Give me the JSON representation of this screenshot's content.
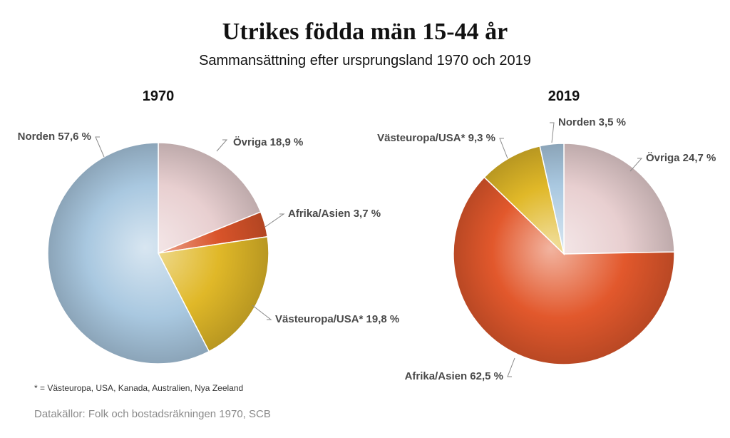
{
  "title": "Utrikes födda män 15-44 år",
  "subtitle": "Sammansättning efter ursprungsland 1970 och 2019",
  "footnote": "* = Västeuropa, USA, Kanada, Australien, Nya Zeeland",
  "source": "Datakällor: Folk och bostadsräkningen 1970, SCB",
  "chart_data": [
    {
      "type": "pie",
      "title": "1970",
      "slices": [
        {
          "label": "Övriga 18,9 %",
          "category": "Övriga",
          "value": 18.9,
          "color": "#e8cfd0"
        },
        {
          "label": "Afrika/Asien 3,7 %",
          "category": "Afrika/Asien",
          "value": 3.7,
          "color": "#d9542a"
        },
        {
          "label": "Västeuropa/USA* 19,8 %",
          "category": "Västeuropa/USA*",
          "value": 19.8,
          "color": "#e0b828"
        },
        {
          "label": "Norden 57,6 %",
          "category": "Norden",
          "value": 57.6,
          "color": "#a9c8e0"
        }
      ]
    },
    {
      "type": "pie",
      "title": "2019",
      "slices": [
        {
          "label": "Övriga 24,7 %",
          "category": "Övriga",
          "value": 24.7,
          "color": "#e8cfd0"
        },
        {
          "label": "Afrika/Asien 62,5 %",
          "category": "Afrika/Asien",
          "value": 62.5,
          "color": "#e2582c"
        },
        {
          "label": "Västeuropa/USA* 9,3 %",
          "category": "Västeuropa/USA*",
          "value": 9.3,
          "color": "#e0b828"
        },
        {
          "label": "Norden 3,5 %",
          "category": "Norden",
          "value": 3.5,
          "color": "#a9c8e0"
        }
      ]
    }
  ]
}
